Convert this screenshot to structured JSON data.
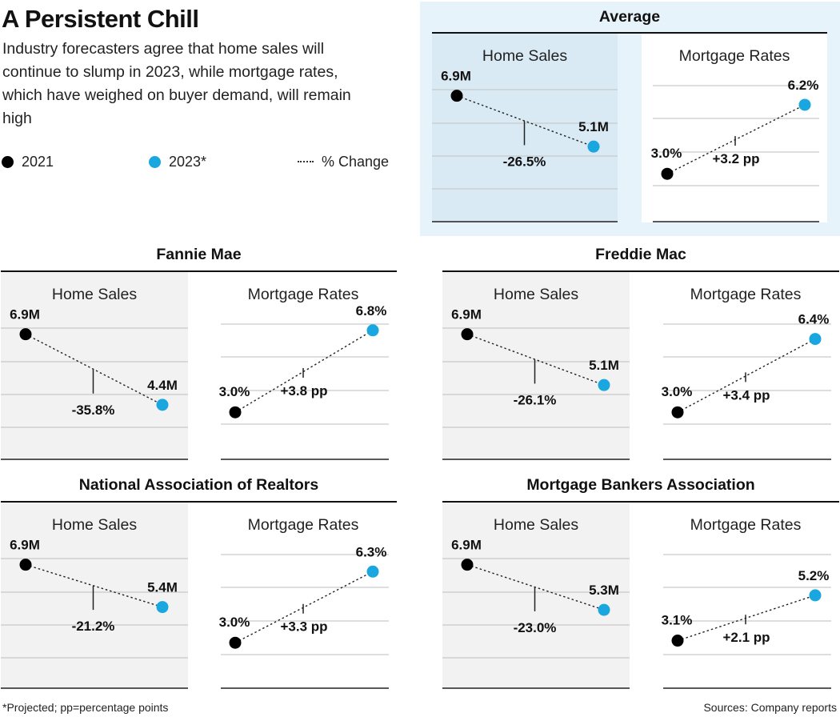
{
  "header": {
    "title": "A Persistent Chill",
    "subtitle": "Industry forecasters agree that home sales will continue to slump in 2023, while mortgage rates, which have weighed on buyer demand, will remain high"
  },
  "legend": {
    "series_2021": "2021",
    "series_2023": "2023*",
    "change": "% Change"
  },
  "colors": {
    "series_2021": "#000000",
    "series_2023": "#1aa7e0",
    "highlight_bg": "#e6f3fb",
    "home_sales_panel_bg": "#f2f2f2"
  },
  "footnote": "*Projected; pp=percentage points",
  "source": "Sources: Company reports",
  "chart_data": [
    {
      "type": "line",
      "group": "Average",
      "panels": [
        {
          "title": "Home Sales",
          "x": [
            "2021",
            "2023*"
          ],
          "values": [
            6.9,
            5.1
          ],
          "labels": [
            "6.9M",
            "5.1M"
          ],
          "change_label": "-26.5%"
        },
        {
          "title": "Mortgage Rates",
          "x": [
            "2021",
            "2023*"
          ],
          "values": [
            3.0,
            6.2
          ],
          "labels": [
            "3.0%",
            "6.2%"
          ],
          "change_label": "+3.2 pp"
        }
      ]
    },
    {
      "type": "line",
      "group": "Fannie Mae",
      "panels": [
        {
          "title": "Home Sales",
          "x": [
            "2021",
            "2023*"
          ],
          "values": [
            6.9,
            4.4
          ],
          "labels": [
            "6.9M",
            "4.4M"
          ],
          "change_label": "-35.8%"
        },
        {
          "title": "Mortgage Rates",
          "x": [
            "2021",
            "2023*"
          ],
          "values": [
            3.0,
            6.8
          ],
          "labels": [
            "3.0%",
            "6.8%"
          ],
          "change_label": "+3.8 pp"
        }
      ]
    },
    {
      "type": "line",
      "group": "Freddie Mac",
      "panels": [
        {
          "title": "Home Sales",
          "x": [
            "2021",
            "2023*"
          ],
          "values": [
            6.9,
            5.1
          ],
          "labels": [
            "6.9M",
            "5.1M"
          ],
          "change_label": "-26.1%"
        },
        {
          "title": "Mortgage Rates",
          "x": [
            "2021",
            "2023*"
          ],
          "values": [
            3.0,
            6.4
          ],
          "labels": [
            "3.0%",
            "6.4%"
          ],
          "change_label": "+3.4 pp"
        }
      ]
    },
    {
      "type": "line",
      "group": "National Association of Realtors",
      "panels": [
        {
          "title": "Home Sales",
          "x": [
            "2021",
            "2023*"
          ],
          "values": [
            6.9,
            5.4
          ],
          "labels": [
            "6.9M",
            "5.4M"
          ],
          "change_label": "-21.2%"
        },
        {
          "title": "Mortgage Rates",
          "x": [
            "2021",
            "2023*"
          ],
          "values": [
            3.0,
            6.3
          ],
          "labels": [
            "3.0%",
            "6.3%"
          ],
          "change_label": "+3.3 pp"
        }
      ]
    },
    {
      "type": "line",
      "group": "Mortgage Bankers Association",
      "panels": [
        {
          "title": "Home Sales",
          "x": [
            "2021",
            "2023*"
          ],
          "values": [
            6.9,
            5.3
          ],
          "labels": [
            "6.9M",
            "5.3M"
          ],
          "change_label": "-23.0%"
        },
        {
          "title": "Mortgage Rates",
          "x": [
            "2021",
            "2023*"
          ],
          "values": [
            3.1,
            5.2
          ],
          "labels": [
            "3.1%",
            "5.2%"
          ],
          "change_label": "+2.1 pp"
        }
      ]
    }
  ]
}
